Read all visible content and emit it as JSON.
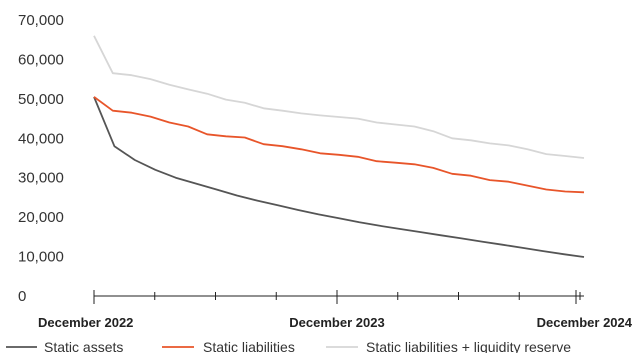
{
  "chart_data": {
    "type": "line",
    "title": "",
    "xlabel": "",
    "ylabel": "",
    "x_tick_labels": [
      "December 2022",
      "December 2023",
      "December 2024"
    ],
    "y_ticks": [
      "0",
      "10,000",
      "20,000",
      "30,000",
      "40,000",
      "50,000",
      "60,000",
      "70,000"
    ],
    "ylim": [
      0,
      70000
    ],
    "grid": false,
    "legend_placement": "bottom",
    "series": [
      {
        "name": "Static assets",
        "color": "#555555",
        "values": [
          50500,
          38000,
          34500,
          32000,
          30000,
          28500,
          27000,
          25500,
          24200,
          23000,
          21800,
          20700,
          19700,
          18700,
          17800,
          17000,
          16200,
          15400,
          14600,
          13800,
          13000,
          12200,
          11400,
          10600,
          9900
        ]
      },
      {
        "name": "Static liabilities",
        "color": "#e8552a",
        "values": [
          50500,
          47000,
          46500,
          45500,
          44000,
          43000,
          41000,
          40500,
          40200,
          38500,
          38000,
          37200,
          36200,
          35800,
          35300,
          34200,
          33800,
          33400,
          32500,
          31000,
          30500,
          29400,
          29000,
          28000,
          27000,
          26500,
          26300
        ]
      },
      {
        "name": "Static liabilities + liquidity reserve",
        "color": "#d6d6d6",
        "values": [
          66000,
          56500,
          56000,
          55000,
          53600,
          52400,
          51300,
          49800,
          49000,
          47600,
          47000,
          46300,
          45800,
          45400,
          45000,
          44000,
          43500,
          43000,
          41800,
          40000,
          39500,
          38700,
          38200,
          37200,
          36000,
          35500,
          35000
        ]
      }
    ]
  }
}
